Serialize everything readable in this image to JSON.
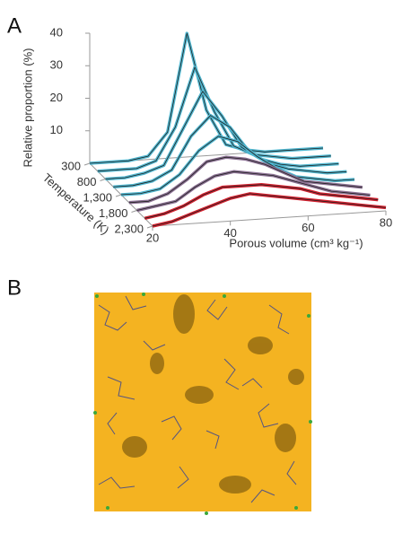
{
  "panel_a": {
    "label": "A"
  },
  "panel_b": {
    "label": "B"
  },
  "chart_data": {
    "type": "waterfall3d",
    "zlabel": "Relative proportion (%)",
    "ylabel": "Temperature (K)",
    "xlabel": "Porous volume (cm³ kg⁻¹)",
    "x": [
      20,
      25,
      30,
      35,
      40,
      45,
      50,
      55,
      60,
      65,
      70,
      75,
      80
    ],
    "xlim": [
      20,
      80
    ],
    "xticks": [
      20,
      40,
      60,
      80
    ],
    "ylim": [
      300,
      2300
    ],
    "yticks": [
      300,
      800,
      {
        "value": 1300,
        "label": "1,300"
      },
      {
        "value": 1800,
        "label": "1,800"
      },
      {
        "value": 2300,
        "label": "2,300"
      }
    ],
    "zlim": [
      0,
      40
    ],
    "zticks": [
      10,
      20,
      30,
      40
    ],
    "series": [
      {
        "y": 300,
        "color": "#4fb6cf",
        "values": [
          0,
          0,
          0,
          1,
          8,
          38,
          14,
          3,
          1,
          0,
          0,
          0,
          0
        ]
      },
      {
        "y": 550,
        "color": "#4fb6cf",
        "values": [
          0,
          0,
          0,
          2,
          12,
          30,
          16,
          5,
          2,
          1,
          0,
          0,
          0
        ]
      },
      {
        "y": 800,
        "color": "#4fb6cf",
        "values": [
          0,
          0,
          1,
          3,
          14,
          25,
          17,
          7,
          3,
          1,
          0,
          0,
          0
        ]
      },
      {
        "y": 1050,
        "color": "#4fb6cf",
        "values": [
          0,
          0,
          1,
          4,
          14,
          20,
          16,
          8,
          4,
          2,
          1,
          0,
          0
        ]
      },
      {
        "y": 1300,
        "color": "#4fb6cf",
        "values": [
          0,
          0,
          1,
          5,
          12,
          16,
          14,
          9,
          5,
          2,
          1,
          0,
          0
        ]
      },
      {
        "y": 1550,
        "color": "#8c7194",
        "values": [
          0,
          0,
          2,
          6,
          11,
          12,
          11,
          9,
          6,
          3,
          2,
          1,
          0
        ]
      },
      {
        "y": 1800,
        "color": "#8c7194",
        "values": [
          0,
          1,
          2,
          6,
          9,
          10,
          9,
          8,
          6,
          4,
          2,
          1,
          0
        ]
      },
      {
        "y": 2050,
        "color": "#d3202e",
        "values": [
          0,
          1,
          3,
          6,
          8,
          8,
          8,
          7,
          6,
          4,
          3,
          2,
          1
        ]
      },
      {
        "y": 2300,
        "color": "#d3202e",
        "values": [
          0,
          1,
          3,
          5,
          7,
          8,
          7,
          6,
          5,
          4,
          3,
          2,
          1
        ]
      }
    ]
  }
}
